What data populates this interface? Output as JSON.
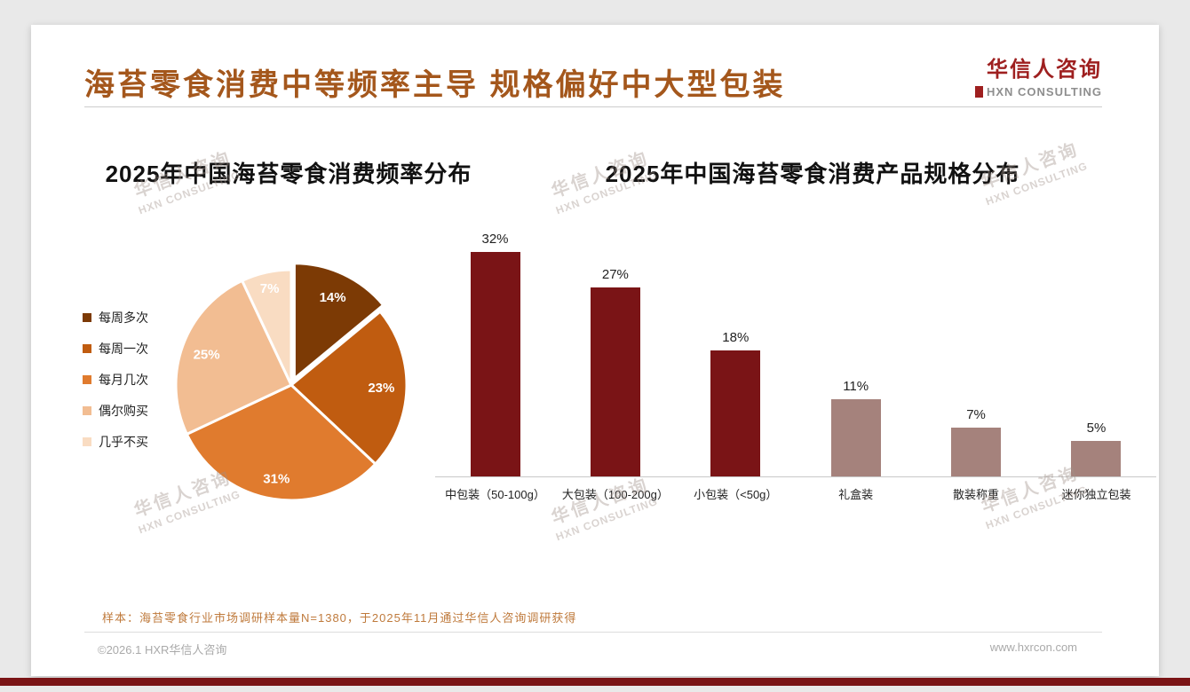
{
  "header": {
    "title": "海苔零食消费中等频率主导 规格偏好中大型包装",
    "logo_cn": "华信人咨询",
    "logo_en": "HXN CONSULTING"
  },
  "chart_data": [
    {
      "type": "pie",
      "title": "2025年中国海苔零食消费频率分布",
      "labels": [
        "每周多次",
        "每周一次",
        "每月几次",
        "偶尔购买",
        "几乎不买"
      ],
      "values": [
        14,
        23,
        31,
        25,
        7
      ],
      "colors": [
        "#7c3a05",
        "#c05c10",
        "#e07b2e",
        "#f2bd92",
        "#f9dcc2"
      ],
      "value_label_format": "percent",
      "value_label_color": "#ffffff",
      "legend_position": "left",
      "start_angle_deg": 0,
      "direction": "clockwise"
    },
    {
      "type": "bar",
      "title": "2025年中国海苔零食消费产品规格分布",
      "categories": [
        "中包装（50-100g）",
        "大包装（100-200g）",
        "小包装（<50g）",
        "礼盒装",
        "散装称重",
        "迷你独立包装"
      ],
      "values": [
        32,
        27,
        18,
        11,
        7,
        5
      ],
      "bar_colors": [
        "#7a1416",
        "#7a1416",
        "#7a1416",
        "#a5827c",
        "#a5827c",
        "#a5827c"
      ],
      "ylim": [
        0,
        35
      ],
      "grid": false,
      "value_label_format": "percent",
      "legend_position": "none"
    }
  ],
  "footnote": "样本：海苔零食行业市场调研样本量N=1380，于2025年11月通过华信人咨询调研获得",
  "footer": {
    "copyright": "©2026.1 HXR华信人咨询",
    "website": "www.hxrcon.com"
  },
  "watermark": {
    "line1": "华信人咨询",
    "line2": "HXN CONSULTING"
  },
  "colors": {
    "page_title": "#a4571c",
    "logo_red": "#9e1f1f",
    "footnote": "#bf7a3c",
    "bottom_bar": "#7a1416"
  }
}
